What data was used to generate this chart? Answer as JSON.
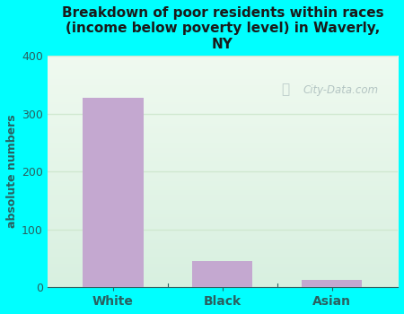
{
  "categories": [
    "White",
    "Black",
    "Asian"
  ],
  "values": [
    328,
    45,
    12
  ],
  "bar_color": "#c4a8d0",
  "title": "Breakdown of poor residents within races\n(income below poverty level) in Waverly,\nNY",
  "ylabel": "absolute numbers",
  "ylim": [
    0,
    400
  ],
  "yticks": [
    0,
    100,
    200,
    300,
    400
  ],
  "background_color": "#00ffff",
  "title_color": "#1a1a1a",
  "axis_label_color": "#2a6060",
  "tick_color": "#2a6060",
  "grid_color": "#d0e8d0",
  "watermark": "City-Data.com",
  "watermark_color": "#aabcbc",
  "plot_grad_top": "#f0faf0",
  "plot_grad_bottom": "#d8f0e0"
}
